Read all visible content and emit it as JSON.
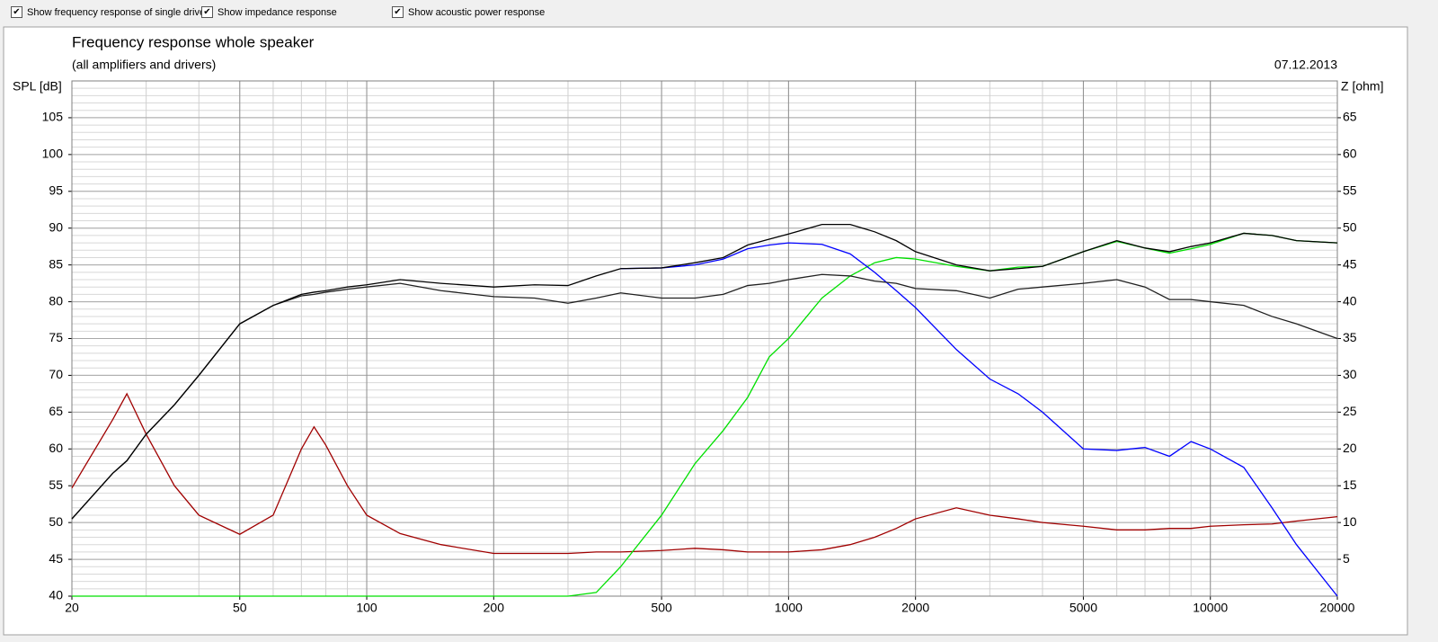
{
  "toolbar": {
    "checkboxes": [
      {
        "label": "Show frequency response of single drive",
        "checked": true
      },
      {
        "label": "Show impedance response",
        "checked": true
      },
      {
        "label": "Show acoustic power response",
        "checked": true
      }
    ]
  },
  "chart_data": {
    "type": "line",
    "title": "Frequency response whole speaker",
    "subtitle": "(all amplifiers and drivers)",
    "date": "07.12.2013",
    "ylabel": "SPL [dB]",
    "y2label": "Z [ohm]",
    "xscale": "log",
    "grid": true,
    "minor_grid": true,
    "xlim": [
      20,
      20000
    ],
    "xticks": [
      20,
      50,
      100,
      200,
      500,
      1000,
      2000,
      5000,
      10000,
      20000
    ],
    "ylim": [
      40,
      110
    ],
    "yticks": [
      40,
      45,
      50,
      55,
      60,
      65,
      70,
      75,
      80,
      85,
      90,
      95,
      100,
      105
    ],
    "y2lim": [
      0,
      70
    ],
    "y2ticks": [
      5,
      10,
      15,
      20,
      25,
      30,
      35,
      40,
      45,
      50,
      55,
      60,
      65
    ],
    "x": [
      20,
      25,
      27,
      30,
      35,
      40,
      50,
      60,
      70,
      75,
      80,
      90,
      100,
      120,
      150,
      200,
      250,
      300,
      350,
      400,
      500,
      600,
      700,
      800,
      900,
      1000,
      1200,
      1400,
      1600,
      1800,
      2000,
      2500,
      3000,
      3500,
      4000,
      5000,
      6000,
      7000,
      8000,
      9000,
      10000,
      12000,
      14000,
      16000,
      20000
    ],
    "series": [
      {
        "color": "#a00000",
        "axis": "y2",
        "values": [
          14.7,
          24,
          27.5,
          22,
          15,
          11,
          8.4,
          11,
          20,
          23,
          20.5,
          15,
          11,
          8.5,
          7,
          5.8,
          5.8,
          5.8,
          6,
          6,
          6.2,
          6.5,
          6.3,
          6,
          6,
          6,
          6.3,
          7,
          8,
          9.2,
          10.5,
          12,
          11,
          10.5,
          10,
          9.5,
          9,
          9,
          9.2,
          9.2,
          9.5,
          9.7,
          9.8,
          10.2,
          10.8
        ]
      },
      {
        "color": "#00e000",
        "values": [
          40,
          40,
          40,
          40,
          40,
          40,
          40,
          40,
          40,
          40,
          40,
          40,
          40,
          40,
          40,
          40,
          40,
          40,
          40.5,
          44,
          51,
          58,
          62.5,
          67,
          72.5,
          75,
          80.5,
          83.5,
          85.3,
          86,
          85.8,
          84.8,
          84.2,
          84.7,
          84.8,
          86.8,
          88.2,
          87.3,
          86.6,
          87.2,
          87.8,
          89.3,
          89,
          88.3,
          88
        ]
      },
      {
        "color": "#0000ff",
        "values": [
          null,
          null,
          null,
          null,
          null,
          null,
          null,
          null,
          null,
          null,
          null,
          null,
          null,
          null,
          null,
          null,
          null,
          null,
          null,
          84.5,
          84.6,
          85,
          85.8,
          87.2,
          87.7,
          88,
          87.8,
          86.5,
          84,
          81.5,
          79.2,
          73.5,
          69.5,
          67.5,
          65,
          60,
          59.8,
          60.2,
          59,
          61,
          60,
          57.5,
          52,
          47,
          40
        ]
      },
      {
        "color": "#202020",
        "values": [
          50.5,
          56.7,
          58.4,
          62,
          66,
          70,
          77,
          79.5,
          80.8,
          81,
          81.3,
          81.7,
          82,
          82.5,
          81.5,
          80.7,
          80.5,
          79.8,
          80.5,
          81.2,
          80.5,
          80.5,
          81,
          82.2,
          82.5,
          83,
          83.7,
          83.5,
          82.8,
          82.5,
          81.8,
          81.5,
          80.5,
          81.7,
          82,
          82.5,
          83,
          82,
          80.3,
          80.3,
          80,
          79.5,
          78,
          77,
          75
        ]
      },
      {
        "color": "#000000",
        "values": [
          50.5,
          56.7,
          58.4,
          62,
          66,
          70,
          77,
          79.5,
          81,
          81.3,
          81.5,
          82,
          82.3,
          83,
          82.5,
          82,
          82.3,
          82.2,
          83.5,
          84.5,
          84.6,
          85.3,
          86,
          87.7,
          88.5,
          89.2,
          90.5,
          90.5,
          89.5,
          88.3,
          86.8,
          85,
          84.2,
          84.5,
          84.8,
          86.8,
          88.3,
          87.3,
          86.8,
          87.5,
          88,
          89.3,
          89,
          88.3,
          88
        ]
      }
    ]
  }
}
